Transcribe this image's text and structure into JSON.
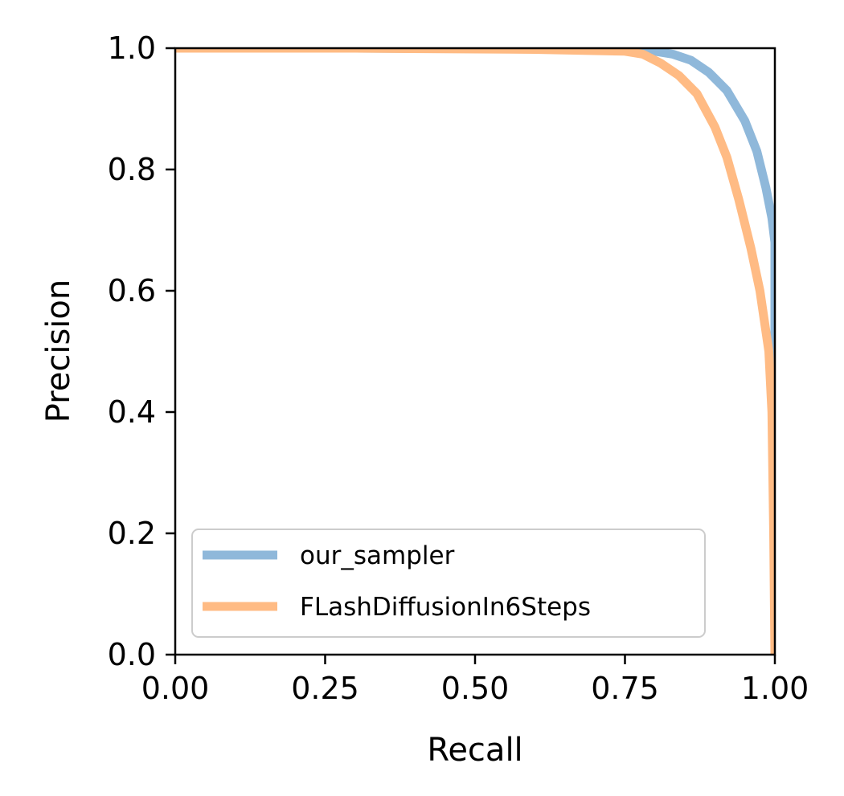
{
  "chart_data": {
    "type": "line",
    "title": "",
    "xlabel": "Recall",
    "ylabel": "Precision",
    "xlim": [
      0.0,
      1.0
    ],
    "ylim": [
      0.0,
      1.0
    ],
    "xticks": [
      "0.00",
      "0.25",
      "0.50",
      "0.75",
      "1.00"
    ],
    "yticks": [
      "0.0",
      "0.2",
      "0.4",
      "0.6",
      "0.8",
      "1.0"
    ],
    "grid": false,
    "legend_position": "lower-left",
    "series": [
      {
        "name": "our_sampler",
        "color": "#8fb8da",
        "points": [
          [
            0.0,
            1.0
          ],
          [
            0.3,
            1.0
          ],
          [
            0.6,
            0.999
          ],
          [
            0.75,
            0.997
          ],
          [
            0.8,
            0.995
          ],
          [
            0.83,
            0.99
          ],
          [
            0.86,
            0.98
          ],
          [
            0.89,
            0.96
          ],
          [
            0.92,
            0.93
          ],
          [
            0.95,
            0.88
          ],
          [
            0.97,
            0.83
          ],
          [
            0.985,
            0.77
          ],
          [
            0.995,
            0.72
          ],
          [
            1.0,
            0.68
          ],
          [
            1.0,
            0.3
          ],
          [
            1.0,
            0.0
          ]
        ]
      },
      {
        "name": "FLashDiffusionIn6Steps",
        "color": "#ffbb84",
        "points": [
          [
            0.0,
            1.0
          ],
          [
            0.3,
            1.0
          ],
          [
            0.6,
            0.998
          ],
          [
            0.75,
            0.995
          ],
          [
            0.78,
            0.99
          ],
          [
            0.81,
            0.975
          ],
          [
            0.84,
            0.955
          ],
          [
            0.87,
            0.925
          ],
          [
            0.9,
            0.87
          ],
          [
            0.92,
            0.82
          ],
          [
            0.94,
            0.75
          ],
          [
            0.96,
            0.67
          ],
          [
            0.975,
            0.6
          ],
          [
            0.99,
            0.5
          ],
          [
            0.995,
            0.4
          ],
          [
            0.998,
            0.2
          ],
          [
            1.0,
            0.0
          ]
        ]
      }
    ]
  }
}
